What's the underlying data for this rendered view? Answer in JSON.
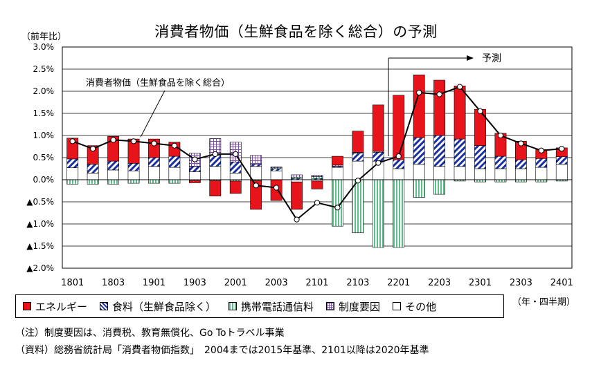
{
  "chart_data": {
    "type": "bar",
    "title": "消費者物価（生鮮食品を除く総合）の予測",
    "ylabel": "（前年比）",
    "xlabel": "（年・四半期）",
    "ylim": [
      -2.0,
      3.0
    ],
    "yticks": [
      {
        "value": 3.0,
        "label": "3.0%"
      },
      {
        "value": 2.5,
        "label": "2.5%"
      },
      {
        "value": 2.0,
        "label": "2.0%"
      },
      {
        "value": 1.5,
        "label": "1.5%"
      },
      {
        "value": 1.0,
        "label": "1.0%"
      },
      {
        "value": 0.5,
        "label": "0.5%"
      },
      {
        "value": 0.0,
        "label": "0.0%"
      },
      {
        "value": -0.5,
        "label": "▲0.5%"
      },
      {
        "value": -1.0,
        "label": "▲1.0%"
      },
      {
        "value": -1.5,
        "label": "▲1.5%"
      },
      {
        "value": -2.0,
        "label": "▲2.0%"
      }
    ],
    "categories": [
      "1801",
      "1802",
      "1803",
      "1804",
      "1901",
      "1902",
      "1903",
      "1904",
      "2001",
      "2002",
      "2003",
      "2004",
      "2101",
      "2102",
      "2103",
      "2104",
      "2201",
      "2202",
      "2203",
      "2204",
      "2301",
      "2302",
      "2303",
      "2304",
      "2401"
    ],
    "xtick_labels": [
      "1801",
      "",
      "1803",
      "",
      "1901",
      "",
      "1903",
      "",
      "2001",
      "",
      "2003",
      "",
      "2101",
      "",
      "2103",
      "",
      "2201",
      "",
      "2203",
      "",
      "2301",
      "",
      "2303",
      "",
      "2401"
    ],
    "series": [
      {
        "name": "その他",
        "color": "#ffffff",
        "pattern": "none",
        "values": [
          0.27,
          0.15,
          0.22,
          0.2,
          0.3,
          0.28,
          0.18,
          0.3,
          0.15,
          0.3,
          0.2,
          -0.05,
          -0.03,
          0.28,
          0.42,
          0.42,
          0.25,
          0.35,
          0.3,
          0.3,
          0.25,
          0.25,
          0.25,
          0.28,
          0.35
        ]
      },
      {
        "name": "食料（生鮮食品除く）",
        "color": "#1a2fa0",
        "pattern": "diagonal",
        "values": [
          0.2,
          0.2,
          0.2,
          0.17,
          0.2,
          0.25,
          0.12,
          0.25,
          0.25,
          0.05,
          0.05,
          0.03,
          0.03,
          0.02,
          0.18,
          0.2,
          0.2,
          0.6,
          0.7,
          0.62,
          0.52,
          0.28,
          0.2,
          0.2,
          0.17
        ]
      },
      {
        "name": "携帯電話通信料",
        "color": "#5cbf8a",
        "pattern": "vertical",
        "values": [
          -0.1,
          -0.1,
          -0.1,
          -0.08,
          -0.08,
          -0.08,
          -0.02,
          -0.02,
          -0.03,
          -0.02,
          0.02,
          0.03,
          0.04,
          -1.05,
          -1.2,
          -1.53,
          -1.53,
          -0.4,
          -0.33,
          -0.03,
          -0.05,
          -0.05,
          -0.05,
          -0.05,
          -0.03
        ]
      },
      {
        "name": "制度要因",
        "color": "#7a4fa8",
        "pattern": "grid",
        "values": [
          0,
          0,
          0,
          0,
          0,
          0,
          0.3,
          0.38,
          0.45,
          0.2,
          0.02,
          0.05,
          0.03,
          0.03,
          0.02,
          0.02,
          0,
          0,
          0,
          0,
          0,
          0,
          0,
          0,
          0
        ]
      },
      {
        "name": "エネルギー",
        "color": "#e8141b",
        "pattern": "none",
        "values": [
          0.47,
          0.42,
          0.56,
          0.55,
          0.42,
          0.32,
          -0.05,
          -0.35,
          -0.28,
          -0.65,
          -0.47,
          -0.62,
          -0.18,
          0.2,
          0.48,
          1.05,
          1.46,
          1.42,
          1.25,
          1.2,
          0.82,
          0.52,
          0.42,
          0.2,
          0.2
        ]
      }
    ],
    "line": {
      "name": "消費者物価（生鮮食品を除く総合）",
      "values": [
        0.87,
        0.7,
        0.9,
        0.87,
        0.82,
        0.77,
        0.46,
        0.58,
        0.58,
        -0.13,
        -0.18,
        -0.9,
        -0.52,
        -0.63,
        -0.02,
        0.38,
        0.53,
        1.97,
        1.93,
        2.1,
        1.55,
        1.0,
        0.82,
        0.66,
        0.7
      ]
    },
    "annotations": [
      {
        "text": "消費者物価（生鮮食品を除く総合）",
        "target_index": 3
      },
      {
        "text": "予測",
        "start_index": 16
      }
    ],
    "legend_position": "bottom"
  },
  "notes": [
    "（注）制度要因は、消費税、教育無償化、Go Toトラベル事業",
    "（資料）総務省統計局「消費者物価指数」　2004までは2015年基準、2101以降は2020年基準"
  ]
}
